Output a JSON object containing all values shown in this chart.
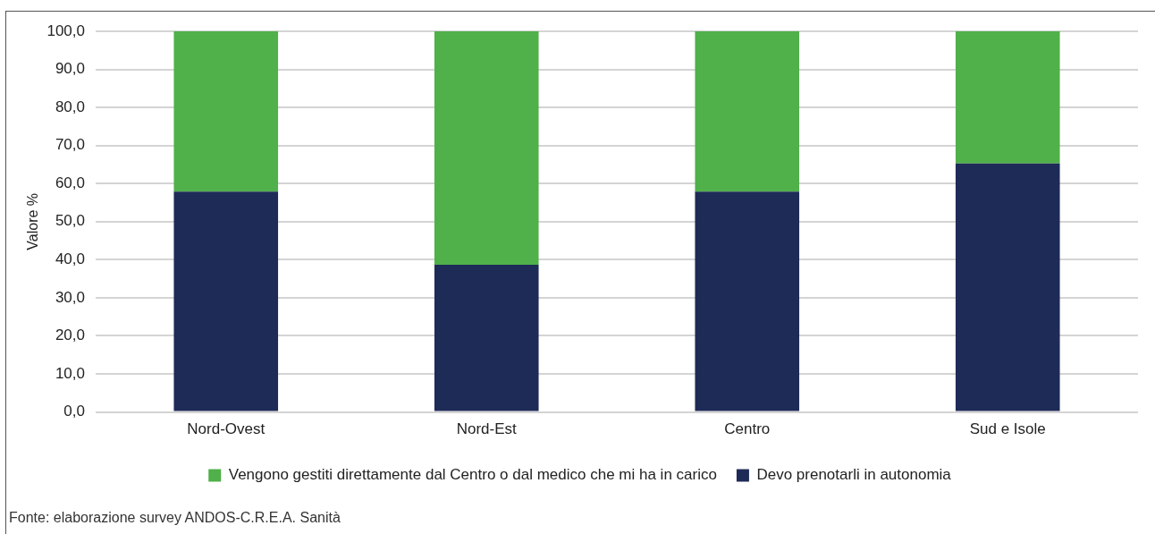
{
  "chart_data": {
    "type": "bar",
    "stacked": true,
    "ylabel": "Valore %",
    "categories": [
      "Nord-Ovest",
      "Nord-Est",
      "Centro",
      "Sud e Isole"
    ],
    "series": [
      {
        "name": "Devo prenotarli in autonomia",
        "color": "#1e2b57",
        "values": [
          57.9,
          38.7,
          57.9,
          65.3
        ]
      },
      {
        "name": "Vengono gestiti direttamente dal Centro o dal medico che mi ha in carico",
        "color": "#50b04a",
        "values": [
          42.1,
          61.3,
          42.1,
          34.7
        ]
      }
    ],
    "ylim": [
      0,
      100
    ],
    "yticks": [
      {
        "value": 0,
        "label": "0,0"
      },
      {
        "value": 10,
        "label": "10,0"
      },
      {
        "value": 20,
        "label": "20,0"
      },
      {
        "value": 30,
        "label": "30,0"
      },
      {
        "value": 40,
        "label": "40,0"
      },
      {
        "value": 50,
        "label": "50,0"
      },
      {
        "value": 60,
        "label": "60,0"
      },
      {
        "value": 70,
        "label": "70,0"
      },
      {
        "value": 80,
        "label": "80,0"
      },
      {
        "value": 90,
        "label": "90,0"
      },
      {
        "value": 100,
        "label": "100,0"
      }
    ],
    "grid": "y",
    "legend": "bottom",
    "annotations": [
      "Fonte: elaborazione survey ANDOS-C.R.E.A. Sanità"
    ]
  }
}
